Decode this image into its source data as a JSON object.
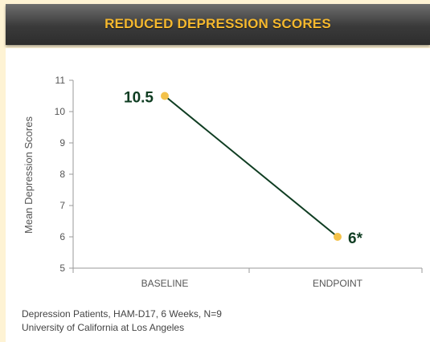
{
  "chart_data": {
    "type": "line",
    "title": "REDUCED DEPRESSION SCORES",
    "ylabel": "Mean Depression Scores",
    "xlabel": "",
    "categories": [
      "BASELINE",
      "ENDPOINT"
    ],
    "series": [
      {
        "values": [
          10.5,
          6
        ],
        "data_labels": [
          "10.5",
          "6*"
        ]
      }
    ],
    "ylim": [
      5,
      11
    ],
    "yticks": [
      5,
      6,
      7,
      8,
      9,
      10,
      11
    ],
    "grid": false,
    "colors": {
      "line": "#0f3d22",
      "marker": "#f3c24a",
      "label": "#0f3d22",
      "title": "#f5b82e"
    }
  },
  "footnotes": [
    "Depression Patients, HAM-D17, 6 Weeks, N=9",
    "University of California at Los Angeles"
  ]
}
